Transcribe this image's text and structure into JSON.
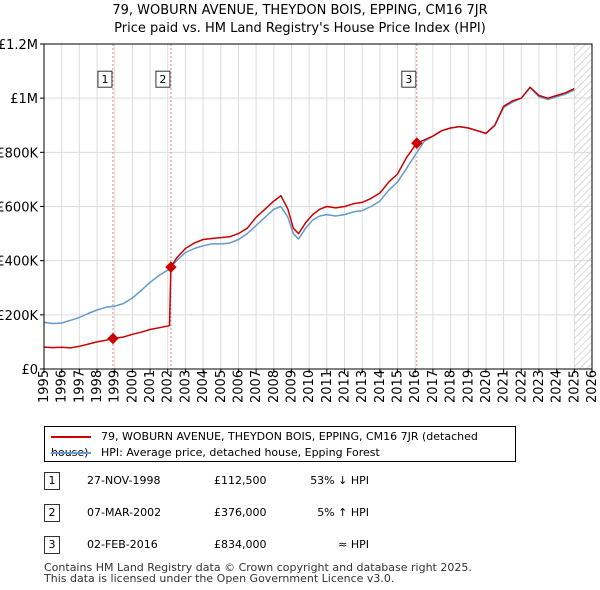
{
  "chart_data": {
    "type": "line",
    "title": [
      "79, WOBURN AVENUE, THEYDON BOIS, EPPING, CM16 7JR",
      "Price paid vs. HM Land Registry's House Price Index (HPI)"
    ],
    "xlim": [
      1995,
      2026
    ],
    "ylim": [
      0,
      1200000
    ],
    "x_ticks": [
      "1995",
      "1996",
      "1997",
      "1998",
      "1999",
      "2000",
      "2001",
      "2002",
      "2003",
      "2004",
      "2005",
      "2006",
      "2007",
      "2008",
      "2009",
      "2010",
      "2011",
      "2012",
      "2013",
      "2014",
      "2015",
      "2016",
      "2017",
      "2018",
      "2019",
      "2020",
      "2021",
      "2022",
      "2023",
      "2024",
      "2025",
      "2026"
    ],
    "y_ticks": [
      {
        "value": 0,
        "label": "£0"
      },
      {
        "value": 200000,
        "label": "£200K"
      },
      {
        "value": 400000,
        "label": "£400K"
      },
      {
        "value": 600000,
        "label": "£600K"
      },
      {
        "value": 800000,
        "label": "£800K"
      },
      {
        "value": 1000000,
        "label": "£1M"
      },
      {
        "value": 1200000,
        "label": "£1.2M"
      }
    ],
    "grid": true,
    "forecast_hatch_from": 2025.0,
    "series": [
      {
        "name": "79, WOBURN AVENUE, THEYDON BOIS, EPPING, CM16 7JR (detached house)",
        "color": "#cc0000",
        "points": [
          [
            1995.0,
            81000
          ],
          [
            1995.5,
            79000
          ],
          [
            1996.0,
            80000
          ],
          [
            1996.5,
            78000
          ],
          [
            1997.0,
            84000
          ],
          [
            1997.5,
            92000
          ],
          [
            1998.0,
            100000
          ],
          [
            1998.5,
            106000
          ],
          [
            1998.9,
            112500
          ],
          [
            1999.5,
            118000
          ],
          [
            2000.0,
            128000
          ],
          [
            2000.5,
            136000
          ],
          [
            2001.0,
            146000
          ],
          [
            2001.5,
            152000
          ],
          [
            2002.1,
            160000
          ],
          [
            2002.18,
            376000
          ],
          [
            2002.5,
            410000
          ],
          [
            2003.0,
            445000
          ],
          [
            2003.5,
            465000
          ],
          [
            2004.0,
            478000
          ],
          [
            2004.5,
            482000
          ],
          [
            2005.0,
            485000
          ],
          [
            2005.5,
            488000
          ],
          [
            2006.0,
            500000
          ],
          [
            2006.5,
            520000
          ],
          [
            2007.0,
            560000
          ],
          [
            2007.5,
            590000
          ],
          [
            2008.0,
            620000
          ],
          [
            2008.4,
            640000
          ],
          [
            2008.8,
            590000
          ],
          [
            2009.1,
            520000
          ],
          [
            2009.4,
            500000
          ],
          [
            2009.8,
            540000
          ],
          [
            2010.2,
            570000
          ],
          [
            2010.6,
            590000
          ],
          [
            2011.0,
            600000
          ],
          [
            2011.5,
            595000
          ],
          [
            2012.0,
            600000
          ],
          [
            2012.5,
            610000
          ],
          [
            2013.0,
            615000
          ],
          [
            2013.5,
            630000
          ],
          [
            2014.0,
            650000
          ],
          [
            2014.5,
            690000
          ],
          [
            2015.0,
            720000
          ],
          [
            2015.5,
            780000
          ],
          [
            2016.09,
            834000
          ],
          [
            2016.5,
            845000
          ],
          [
            2017.0,
            860000
          ],
          [
            2017.5,
            880000
          ],
          [
            2018.0,
            890000
          ],
          [
            2018.5,
            895000
          ],
          [
            2019.0,
            890000
          ],
          [
            2019.5,
            880000
          ],
          [
            2020.0,
            870000
          ],
          [
            2020.5,
            900000
          ],
          [
            2021.0,
            970000
          ],
          [
            2021.5,
            990000
          ],
          [
            2022.0,
            1000000
          ],
          [
            2022.5,
            1040000
          ],
          [
            2023.0,
            1010000
          ],
          [
            2023.5,
            1000000
          ],
          [
            2024.0,
            1010000
          ],
          [
            2024.5,
            1020000
          ],
          [
            2025.0,
            1035000
          ]
        ]
      },
      {
        "name": "HPI: Average price, detached house, Epping Forest",
        "color": "#6699cc",
        "points": [
          [
            1995.0,
            172000
          ],
          [
            1995.5,
            168000
          ],
          [
            1996.0,
            170000
          ],
          [
            1996.5,
            180000
          ],
          [
            1997.0,
            190000
          ],
          [
            1997.5,
            205000
          ],
          [
            1998.0,
            218000
          ],
          [
            1998.5,
            228000
          ],
          [
            1999.0,
            232000
          ],
          [
            1999.5,
            242000
          ],
          [
            2000.0,
            262000
          ],
          [
            2000.5,
            290000
          ],
          [
            2001.0,
            320000
          ],
          [
            2001.5,
            345000
          ],
          [
            2002.0,
            365000
          ],
          [
            2002.5,
            400000
          ],
          [
            2003.0,
            430000
          ],
          [
            2003.5,
            445000
          ],
          [
            2004.0,
            455000
          ],
          [
            2004.5,
            462000
          ],
          [
            2005.0,
            462000
          ],
          [
            2005.5,
            465000
          ],
          [
            2006.0,
            478000
          ],
          [
            2006.5,
            500000
          ],
          [
            2007.0,
            530000
          ],
          [
            2007.5,
            560000
          ],
          [
            2008.0,
            590000
          ],
          [
            2008.4,
            600000
          ],
          [
            2008.8,
            560000
          ],
          [
            2009.1,
            500000
          ],
          [
            2009.4,
            480000
          ],
          [
            2009.8,
            520000
          ],
          [
            2010.2,
            550000
          ],
          [
            2010.6,
            565000
          ],
          [
            2011.0,
            570000
          ],
          [
            2011.5,
            565000
          ],
          [
            2012.0,
            570000
          ],
          [
            2012.5,
            580000
          ],
          [
            2013.0,
            585000
          ],
          [
            2013.5,
            600000
          ],
          [
            2014.0,
            620000
          ],
          [
            2014.5,
            660000
          ],
          [
            2015.0,
            690000
          ],
          [
            2015.5,
            740000
          ],
          [
            2016.0,
            790000
          ],
          [
            2016.5,
            840000
          ],
          [
            2017.0,
            860000
          ],
          [
            2017.5,
            880000
          ],
          [
            2018.0,
            890000
          ],
          [
            2018.5,
            895000
          ],
          [
            2019.0,
            890000
          ],
          [
            2019.5,
            880000
          ],
          [
            2020.0,
            870000
          ],
          [
            2020.5,
            900000
          ],
          [
            2021.0,
            965000
          ],
          [
            2021.5,
            985000
          ],
          [
            2022.0,
            1000000
          ],
          [
            2022.5,
            1040000
          ],
          [
            2023.0,
            1005000
          ],
          [
            2023.5,
            995000
          ],
          [
            2024.0,
            1005000
          ],
          [
            2024.5,
            1015000
          ],
          [
            2025.0,
            1030000
          ]
        ]
      }
    ],
    "sales": [
      {
        "num": "1",
        "x": 1998.9,
        "value": 112500
      },
      {
        "num": "2",
        "x": 2002.18,
        "value": 376000
      },
      {
        "num": "3",
        "x": 2016.09,
        "value": 834000
      }
    ]
  },
  "legend": {
    "property_label": "79, WOBURN AVENUE, THEYDON BOIS, EPPING, CM16 7JR (detached house)",
    "hpi_label": "HPI: Average price, detached house, Epping Forest",
    "property_color": "#cc0000",
    "hpi_color": "#6699cc"
  },
  "transactions": [
    {
      "num": "1",
      "date": "27-NOV-1998",
      "price": "£112,500",
      "relation": "53% ↓ HPI"
    },
    {
      "num": "2",
      "date": "07-MAR-2002",
      "price": "£376,000",
      "relation": "5% ↑ HPI"
    },
    {
      "num": "3",
      "date": "02-FEB-2016",
      "price": "£834,000",
      "relation": "≈ HPI"
    }
  ],
  "footer": {
    "line1": "Contains HM Land Registry data © Crown copyright and database right 2025.",
    "line2": "This data is licensed under the Open Government Licence v3.0."
  }
}
